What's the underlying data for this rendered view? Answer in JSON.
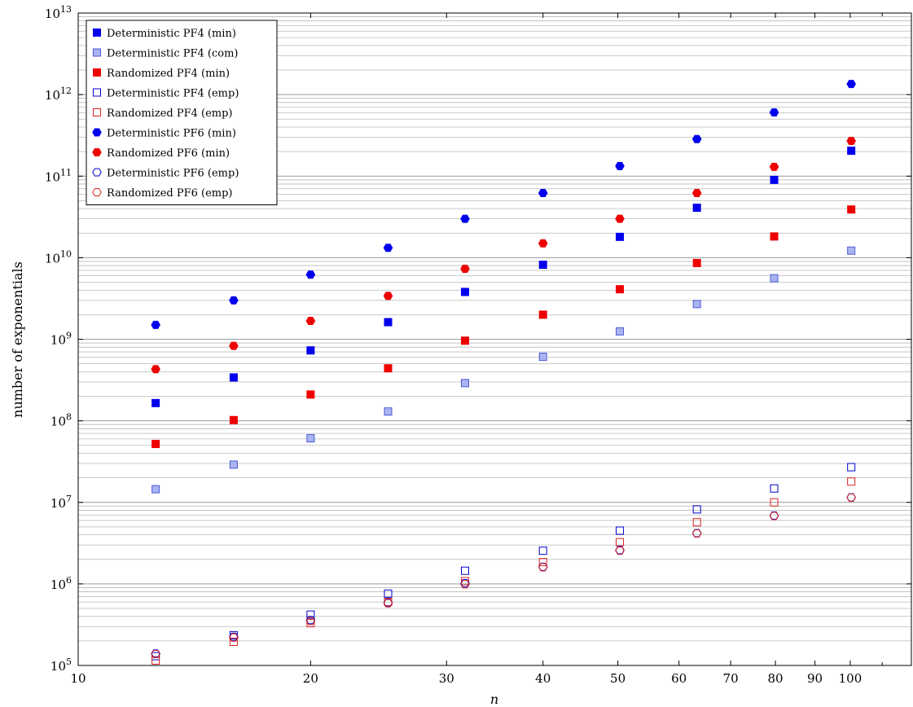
{
  "chart_data": {
    "type": "scatter",
    "x_scale": "log",
    "y_scale": "log",
    "xlim": [
      10,
      120
    ],
    "ylim": [
      100000,
      10000000000000
    ],
    "xlabel": "n",
    "ylabel": "number of exponentials",
    "grid": "y-minor",
    "legend_position": "top-left",
    "x_ticks": [
      {
        "value": 10,
        "label": "10"
      },
      {
        "value": 20,
        "label": "20"
      },
      {
        "value": 30,
        "label": "30"
      },
      {
        "value": 40,
        "label": "40"
      },
      {
        "value": 50,
        "label": "50"
      },
      {
        "value": 60,
        "label": "60"
      },
      {
        "value": 70,
        "label": "70"
      },
      {
        "value": 80,
        "label": "80"
      },
      {
        "value": 90,
        "label": "90"
      },
      {
        "value": 100,
        "label": "100"
      }
    ],
    "y_ticks": [
      {
        "value": 100000,
        "base": "10",
        "exp": "5"
      },
      {
        "value": 1000000,
        "base": "10",
        "exp": "6"
      },
      {
        "value": 10000000,
        "base": "10",
        "exp": "7"
      },
      {
        "value": 100000000,
        "base": "10",
        "exp": "8"
      },
      {
        "value": 1000000000,
        "base": "10",
        "exp": "9"
      },
      {
        "value": 10000000000,
        "base": "10",
        "exp": "10"
      },
      {
        "value": 100000000000,
        "base": "10",
        "exp": "11"
      },
      {
        "value": 1000000000000,
        "base": "10",
        "exp": "12"
      },
      {
        "value": 10000000000000,
        "base": "10",
        "exp": "13"
      }
    ],
    "x": [
      12.6,
      15.9,
      20,
      25.2,
      31.7,
      40,
      50.3,
      63.3,
      79.7,
      100.3
    ],
    "series": [
      {
        "name": "Deterministic PF4 (min)",
        "marker": "square",
        "fill": "#0000ee",
        "stroke": "#0000ee",
        "values": [
          165000000,
          340000000,
          730000000,
          1620000000,
          3800000000,
          8200000000,
          18000000000,
          41000000000,
          90000000000,
          205000000000
        ]
      },
      {
        "name": "Deterministic PF4 (com)",
        "marker": "square",
        "fill": "#aab4f0",
        "stroke": "#4a5ad8",
        "values": [
          14500000,
          29000000,
          61000000,
          130000000,
          290000000,
          610000000,
          1250000000,
          2700000000,
          5600000000,
          12200000000
        ]
      },
      {
        "name": "Randomized PF4 (min)",
        "marker": "square",
        "fill": "#ee0000",
        "stroke": "#ee0000",
        "values": [
          52000000,
          102000000,
          210000000,
          440000000,
          960000000,
          2000000000,
          4100000000,
          8600000000,
          18200000000,
          39000000000
        ]
      },
      {
        "name": "Deterministic PF4 (emp)",
        "marker": "square",
        "fill": "none",
        "stroke": "#0000cc",
        "values": [
          130000,
          235000,
          420000,
          760000,
          1450000,
          2550000,
          4500000,
          8200000,
          14800000,
          27000000
        ]
      },
      {
        "name": "Randomized PF4 (emp)",
        "marker": "square",
        "fill": "none",
        "stroke": "#dd2222",
        "values": [
          115000,
          195000,
          330000,
          600000,
          1080000,
          1850000,
          3250000,
          5700000,
          10000000,
          18000000
        ]
      },
      {
        "name": "Deterministic PF6 (min)",
        "marker": "hexagon",
        "fill": "#0000ee",
        "stroke": "#0000ee",
        "values": [
          1500000000,
          3000000000,
          6200000000,
          13200000000,
          30000000000,
          62000000000,
          133000000000,
          285000000000,
          605000000000,
          1350000000000
        ]
      },
      {
        "name": "Randomized PF6 (min)",
        "marker": "hexagon",
        "fill": "#ee0000",
        "stroke": "#ee0000",
        "values": [
          430000000,
          830000000,
          1680000000,
          3400000000,
          7300000000,
          15000000000,
          30000000000,
          62000000000,
          130000000000,
          270000000000
        ]
      },
      {
        "name": "Deterministic PF6 (emp)",
        "marker": "hexagon",
        "fill": "none",
        "stroke": "#0000cc",
        "values": [
          140000,
          225000,
          360000,
          590000,
          1020000,
          1620000,
          2600000,
          4200000,
          6900000,
          11500000
        ]
      },
      {
        "name": "Randomized PF6 (emp)",
        "marker": "hexagon",
        "fill": "none",
        "stroke": "#dd2222",
        "values": [
          138000,
          220000,
          350000,
          580000,
          990000,
          1600000,
          2550000,
          4150000,
          6800000,
          11400000
        ]
      }
    ]
  }
}
